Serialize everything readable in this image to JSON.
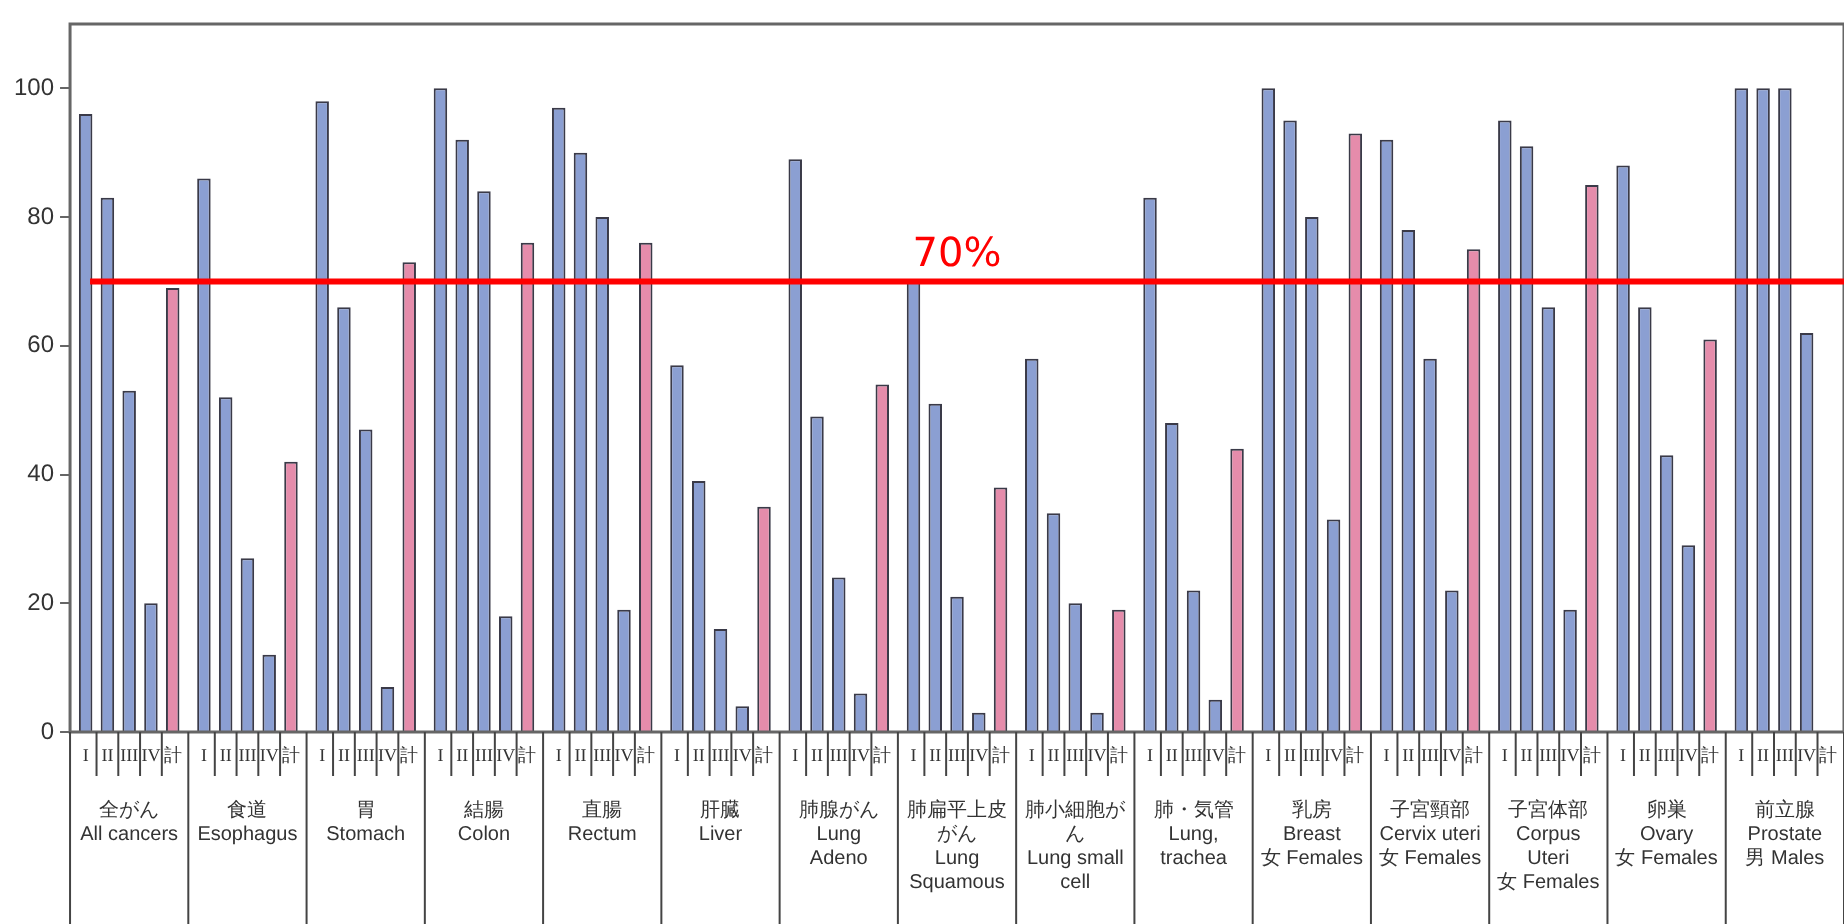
{
  "chart_data": {
    "type": "bar",
    "categories": [
      "全がん\nAll cancers",
      "食道\nEsophagus",
      "胃\nStomach",
      "結腸\nColon",
      "直腸\nRectum",
      "肝臓\nLiver",
      "肺腺がん\nLung Adeno",
      "肺扁平上皮がん\nLung Squamous",
      "肺小細胞がん\nLung small cell",
      "肺・気管\nLung, trachea",
      "乳房\nBreast\n女 Females",
      "子宮頸部\nCervix uteri\n女 Females",
      "子宮体部\nCorpus Uteri\n女 Females",
      "卵巣\nOvary\n女 Females",
      "前立腺\nProstate\n男 Males"
    ],
    "series": [
      {
        "name": "I",
        "color": "#8b9fd2",
        "values": [
          96,
          86,
          98,
          100,
          97,
          57,
          89,
          70,
          58,
          83,
          100,
          92,
          95,
          88,
          100
        ]
      },
      {
        "name": "II",
        "color": "#8b9fd2",
        "values": [
          83,
          52,
          66,
          92,
          90,
          39,
          49,
          51,
          34,
          48,
          95,
          78,
          91,
          66,
          100
        ]
      },
      {
        "name": "III",
        "color": "#8b9fd2",
        "values": [
          53,
          27,
          47,
          84,
          80,
          16,
          24,
          21,
          20,
          22,
          80,
          58,
          66,
          43,
          100
        ]
      },
      {
        "name": "IV",
        "color": "#8b9fd2",
        "values": [
          20,
          12,
          7,
          18,
          19,
          4,
          6,
          3,
          3,
          5,
          33,
          22,
          19,
          29,
          62
        ]
      },
      {
        "name": "計",
        "color": "#e58cab",
        "values": [
          69,
          42,
          73,
          76,
          76,
          35,
          54,
          38,
          19,
          44,
          93,
          75,
          85,
          61,
          null
        ]
      }
    ],
    "ylim": [
      0,
      110
    ],
    "yticks": [
      0,
      20,
      40,
      60,
      80,
      100
    ],
    "grid": false,
    "legend": false,
    "ref_lines": [
      {
        "axis": "y",
        "value": 70,
        "label": "70%",
        "color": "#ff0000"
      }
    ]
  }
}
